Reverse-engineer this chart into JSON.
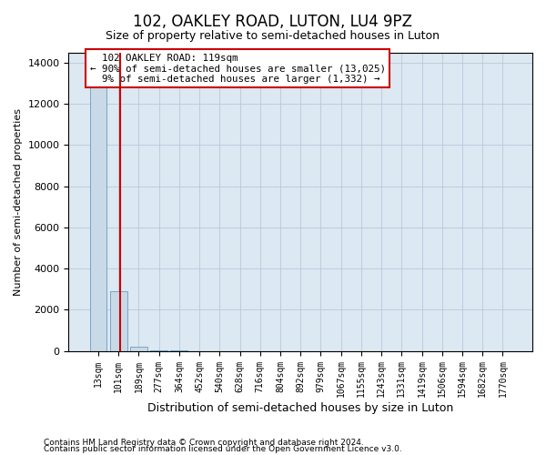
{
  "title": "102, OAKLEY ROAD, LUTON, LU4 9PZ",
  "subtitle": "Size of property relative to semi-detached houses in Luton",
  "xlabel": "Distribution of semi-detached houses by size in Luton",
  "ylabel": "Number of semi-detached properties",
  "property_label": "102 OAKLEY ROAD: 119sqm",
  "pct_smaller": 90,
  "count_smaller": 13025,
  "pct_larger": 9,
  "count_larger": 1332,
  "bin_labels": [
    "13sqm",
    "101sqm",
    "189sqm",
    "277sqm",
    "364sqm",
    "452sqm",
    "540sqm",
    "628sqm",
    "716sqm",
    "804sqm",
    "892sqm",
    "979sqm",
    "1067sqm",
    "1155sqm",
    "1243sqm",
    "1331sqm",
    "1419sqm",
    "1506sqm",
    "1594sqm",
    "1682sqm",
    "1770sqm"
  ],
  "bin_values": [
    13600,
    2900,
    200,
    20,
    5,
    2,
    1,
    1,
    0,
    0,
    0,
    0,
    0,
    0,
    0,
    0,
    0,
    0,
    0,
    0,
    0
  ],
  "bar_color": "#c8d9e8",
  "bar_edge_color": "#6a9cbf",
  "vline_x": 1.07,
  "vline_color": "#cc0000",
  "annotation_box_color": "#cc0000",
  "ylim": [
    0,
    14500
  ],
  "yticks": [
    0,
    2000,
    4000,
    6000,
    8000,
    10000,
    12000,
    14000
  ],
  "grid_color": "#b0c4d8",
  "bg_color": "#dce8f2",
  "footer1": "Contains HM Land Registry data © Crown copyright and database right 2024.",
  "footer2": "Contains public sector information licensed under the Open Government Licence v3.0."
}
